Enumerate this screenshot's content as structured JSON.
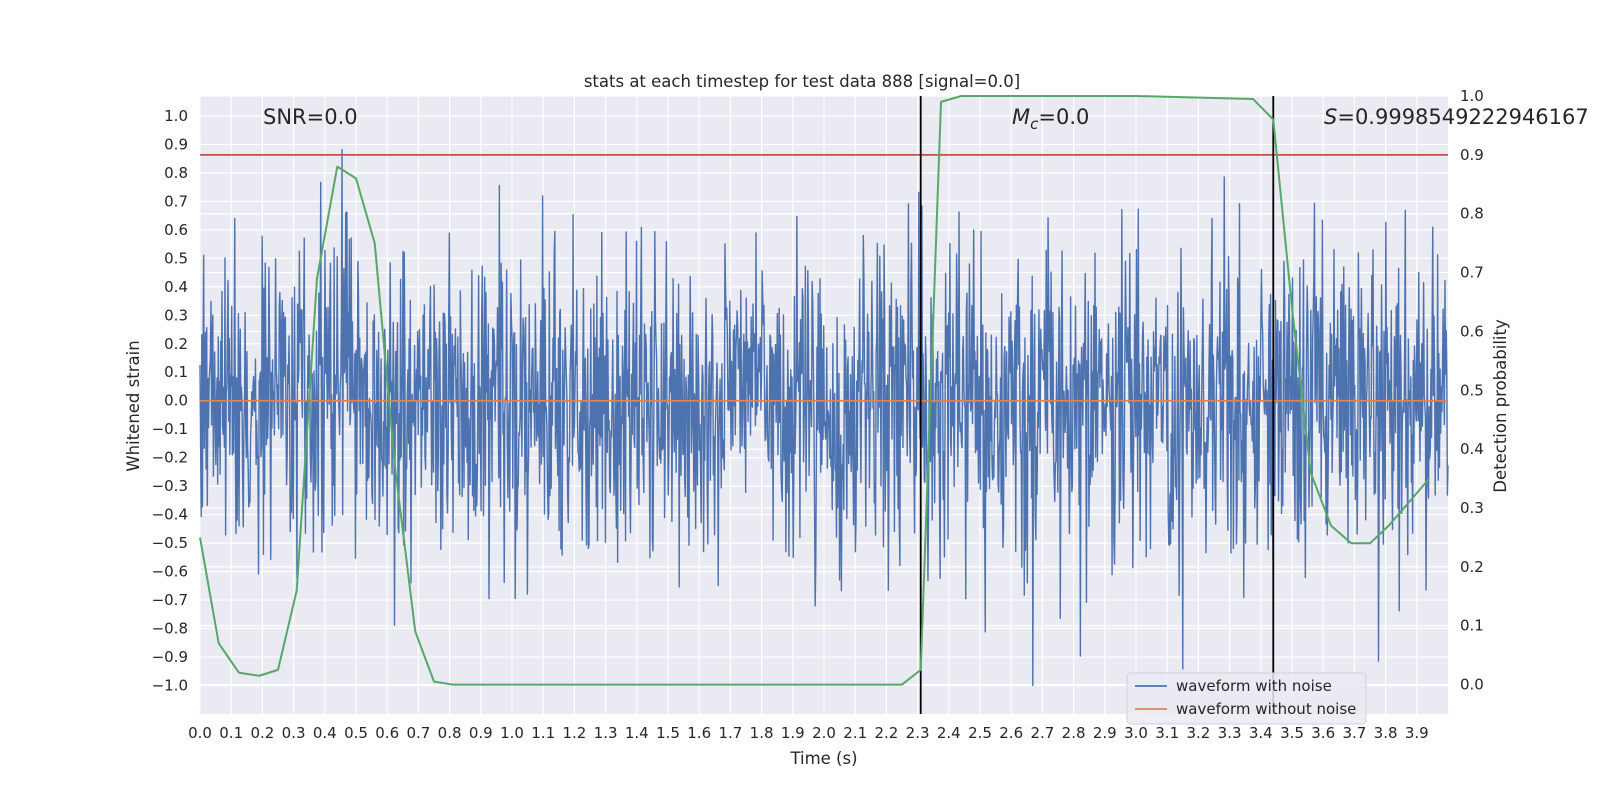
{
  "chart_data": {
    "type": "line",
    "title": "stats at each timestep for test data 888 [signal=0.0]",
    "xlabel": "Time (s)",
    "ylabel_left": "Whitened strain",
    "ylabel_right": "Detection probability",
    "xlim": [
      0.0,
      4.0
    ],
    "ylim_left": [
      -1.1,
      1.07
    ],
    "ylim_right": [
      -0.05,
      1.0
    ],
    "x_ticks": [
      "0.0",
      "0.1",
      "0.2",
      "0.3",
      "0.4",
      "0.5",
      "0.6",
      "0.7",
      "0.8",
      "0.9",
      "1.0",
      "1.1",
      "1.2",
      "1.3",
      "1.4",
      "1.5",
      "1.6",
      "1.7",
      "1.8",
      "1.9",
      "2.0",
      "2.1",
      "2.2",
      "2.3",
      "2.4",
      "2.5",
      "2.6",
      "2.7",
      "2.8",
      "2.9",
      "3.0",
      "3.1",
      "3.2",
      "3.3",
      "3.4",
      "3.5",
      "3.6",
      "3.7",
      "3.8",
      "3.9"
    ],
    "y_ticks_left": [
      "1.0",
      "0.9",
      "0.8",
      "0.7",
      "0.6",
      "0.5",
      "0.4",
      "0.3",
      "0.2",
      "0.1",
      "0.0",
      "−0.1",
      "−0.2",
      "−0.3",
      "−0.4",
      "−0.5",
      "−0.6",
      "−0.7",
      "−0.8",
      "−0.9",
      "−1.0"
    ],
    "y_ticks_right": [
      "0.0",
      "0.1",
      "0.2",
      "0.3",
      "0.4",
      "0.5",
      "0.6",
      "0.7",
      "0.8",
      "0.9",
      "1.0"
    ],
    "annotations": {
      "snr_label": "SNR=0.0",
      "mc_symbol": "M",
      "mc_subscript": "c",
      "mc_value": "=0.0",
      "s_symbol": "S",
      "s_value": "=0.9998549222946167"
    },
    "threshold_line": {
      "value": 0.9,
      "axis": "right",
      "color": "#c44e52"
    },
    "vertical_lines": [
      2.31,
      3.44
    ],
    "noise_series": {
      "name": "waveform with noise",
      "color": "#4c72b0",
      "samples": 2048,
      "seed": 888,
      "approx_range": [
        -1.0,
        0.97
      ]
    },
    "clean_series": {
      "name": "waveform without noise",
      "color": "#dd8452",
      "value": 0.0
    },
    "probability_series": {
      "name": "Detection probability",
      "axis": "right",
      "color": "#55a868",
      "x": [
        0.0,
        0.06,
        0.125,
        0.19,
        0.25,
        0.31,
        0.375,
        0.44,
        0.5,
        0.56,
        0.625,
        0.69,
        0.75,
        0.81,
        1.0,
        1.5,
        2.0,
        2.25,
        2.31,
        2.375,
        2.44,
        2.5,
        3.0,
        3.375,
        3.44,
        3.5,
        3.56,
        3.625,
        3.69,
        3.75,
        3.81,
        3.875,
        3.94
      ],
      "y": [
        0.25,
        0.07,
        0.02,
        0.015,
        0.025,
        0.16,
        0.69,
        0.88,
        0.86,
        0.75,
        0.37,
        0.09,
        0.005,
        0.0,
        0.0,
        0.0,
        0.0,
        0.0,
        0.025,
        0.99,
        1.0,
        1.0,
        1.0,
        0.995,
        0.96,
        0.64,
        0.36,
        0.27,
        0.24,
        0.24,
        0.27,
        0.31,
        0.35
      ]
    },
    "legend": {
      "location": "lower-right",
      "entries": [
        {
          "label": "waveform with noise",
          "color": "#4c72b0"
        },
        {
          "label": "waveform without noise",
          "color": "#dd8452"
        }
      ]
    }
  }
}
